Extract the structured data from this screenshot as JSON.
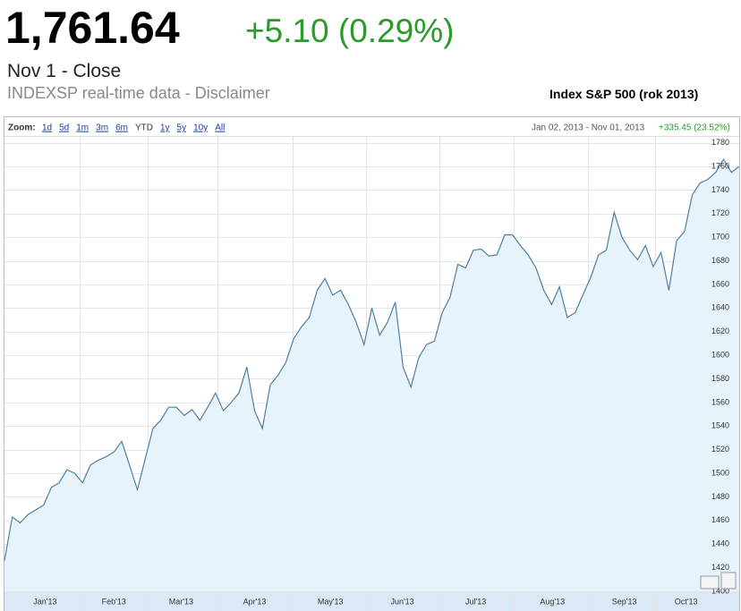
{
  "quote": {
    "price": "1,761.64",
    "change": "+5.10 (0.29%)",
    "date": "Nov 1 - Close",
    "source": "INDEXSP real-time data - Disclaimer"
  },
  "toolbar": {
    "zoom_label": "Zoom:",
    "zoom_options": [
      "1d",
      "5d",
      "1m",
      "3m",
      "6m",
      "YTD",
      "1y",
      "5y",
      "10y",
      "All"
    ],
    "range": "Jan 02, 2013 - Nov 01, 2013",
    "range_change": "+335.45 (23.52%)"
  },
  "chart_data": {
    "type": "area",
    "title": "Index S&P 500 (rok 2013)",
    "series": [
      {
        "color": "#4d7fa6",
        "fill": "#e6f3fb",
        "values": [
          1426,
          1463,
          1458,
          1465,
          1469,
          1473,
          1488,
          1492,
          1503,
          1500,
          1492,
          1507,
          1511,
          1514,
          1518,
          1527,
          1507,
          1486,
          1512,
          1538,
          1545,
          1556,
          1556,
          1549,
          1554,
          1545,
          1556,
          1568,
          1553,
          1560,
          1568,
          1590,
          1553,
          1538,
          1575,
          1583,
          1594,
          1614,
          1624,
          1632,
          1655,
          1665,
          1651,
          1655,
          1643,
          1628,
          1609,
          1640,
          1617,
          1628,
          1645,
          1590,
          1573,
          1598,
          1609,
          1612,
          1636,
          1649,
          1677,
          1674,
          1689,
          1690,
          1684,
          1685,
          1702,
          1702,
          1693,
          1685,
          1674,
          1655,
          1643,
          1658,
          1632,
          1636,
          1651,
          1666,
          1685,
          1689,
          1721,
          1700,
          1689,
          1681,
          1693,
          1675,
          1687,
          1655,
          1697,
          1705,
          1736,
          1746,
          1749,
          1755,
          1766,
          1755,
          1760
        ]
      }
    ],
    "xlim": [
      0,
      94
    ],
    "xticks": [
      {
        "value": 5.2,
        "label": "Jan'13"
      },
      {
        "value": 14.0,
        "label": "Feb'13"
      },
      {
        "value": 22.6,
        "label": "Mar'13"
      },
      {
        "value": 32.0,
        "label": "Apr'13"
      },
      {
        "value": 41.7,
        "label": "May'13"
      },
      {
        "value": 50.9,
        "label": "Jun'13"
      },
      {
        "value": 60.3,
        "label": "Jul'13"
      },
      {
        "value": 70.1,
        "label": "Aug'13"
      },
      {
        "value": 79.3,
        "label": "Sep'13"
      },
      {
        "value": 87.2,
        "label": "Oct'13"
      }
    ],
    "ylim": [
      1400,
      1785
    ],
    "yticks": [
      1400,
      1420,
      1440,
      1460,
      1480,
      1500,
      1520,
      1540,
      1560,
      1580,
      1600,
      1620,
      1640,
      1660,
      1680,
      1700,
      1720,
      1740,
      1760,
      1780
    ],
    "grid": true
  }
}
